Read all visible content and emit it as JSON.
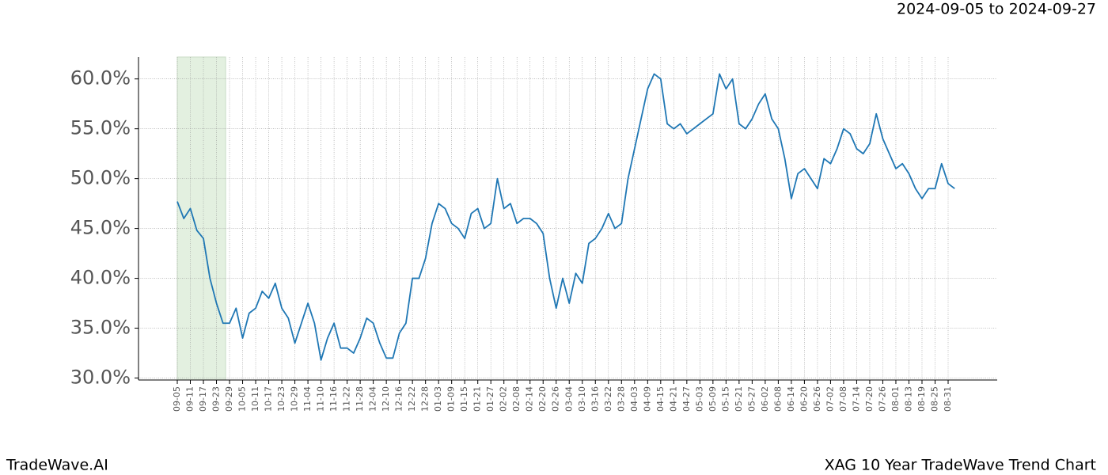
{
  "chart_data": {
    "type": "line",
    "title": "XAG 10 Year TradeWave Trend Chart",
    "subtitle": "2024-09-05 to 2024-09-27",
    "source": "TradeWave.AI",
    "categories": [
      "09-05",
      null,
      "09-11",
      null,
      "09-17",
      null,
      "09-23",
      null,
      "09-29",
      null,
      "10-05",
      null,
      "10-11",
      null,
      "10-17",
      null,
      "10-23",
      null,
      "10-29",
      null,
      "11-04",
      null,
      "11-10",
      null,
      "11-16",
      null,
      "11-22",
      null,
      "11-28",
      null,
      "12-04",
      null,
      "12-10",
      null,
      "12-16",
      null,
      "12-22",
      null,
      "12-28",
      null,
      "01-03",
      null,
      "01-09",
      null,
      "01-15",
      null,
      "01-21",
      null,
      "01-27",
      null,
      "02-02",
      null,
      "02-08",
      null,
      "02-14",
      null,
      "02-20",
      null,
      "02-26",
      null,
      "03-04",
      null,
      "03-10",
      null,
      "03-16",
      null,
      "03-22",
      null,
      "03-28",
      null,
      "04-03",
      null,
      "04-09",
      null,
      "04-15",
      null,
      "04-21",
      null,
      "04-27",
      null,
      "05-03",
      null,
      "05-09",
      null,
      "05-15",
      null,
      "05-21",
      null,
      "05-27",
      null,
      "06-02",
      null,
      "06-08",
      null,
      "06-14",
      null,
      "06-20",
      null,
      "06-26",
      null,
      "07-02",
      null,
      "07-08",
      null,
      "07-14",
      null,
      "07-20",
      null,
      "07-26",
      null,
      "08-01",
      null,
      "08-13",
      null,
      "08-19",
      null,
      "08-25",
      null,
      "08-31",
      null
    ],
    "series": [
      {
        "color": "#1f77b4",
        "values": [
          47.7,
          46.0,
          47.0,
          44.8,
          44.0,
          40.0,
          37.5,
          35.5,
          35.5,
          37.0,
          34.0,
          36.5,
          37.0,
          38.7,
          38.0,
          39.5,
          37.0,
          36.0,
          33.5,
          35.5,
          37.5,
          35.5,
          31.8,
          34.0,
          35.5,
          33.0,
          33.0,
          32.5,
          34.0,
          36.0,
          35.5,
          33.5,
          32.0,
          32.0,
          34.5,
          35.5,
          40.0,
          40.0,
          42.0,
          45.5,
          47.5,
          47.0,
          45.5,
          45.0,
          44.0,
          46.5,
          47.0,
          45.0,
          45.5,
          50.0,
          47.0,
          47.5,
          45.5,
          46.0,
          46.0,
          45.5,
          44.5,
          40.0,
          37.0,
          40.0,
          37.5,
          40.5,
          39.5,
          43.5,
          44.0,
          45.0,
          46.5,
          45.0,
          45.5,
          50.0,
          53.0,
          56.0,
          59.0,
          60.5,
          60.0,
          55.5,
          55.0,
          55.5,
          54.5,
          55.0,
          55.5,
          56.0,
          56.5,
          60.5,
          59.0,
          60.0,
          55.5,
          55.0,
          56.0,
          57.5,
          58.5,
          56.0,
          55.0,
          52.0,
          48.0,
          50.5,
          51.0,
          50.0,
          49.0,
          52.0,
          51.5,
          53.0,
          55.0,
          54.5,
          53.0,
          52.5,
          53.5,
          56.5,
          54.0,
          52.5,
          51.0,
          51.5,
          50.5,
          49.0,
          48.0,
          49.0,
          49.0,
          51.5,
          49.5,
          49.0
        ]
      }
    ],
    "ylim": [
      29.8,
      62.2
    ],
    "yticks": [
      {
        "value": 30,
        "label": "30.0%"
      },
      {
        "value": 35,
        "label": "35.0%"
      },
      {
        "value": 40,
        "label": "40.0%"
      },
      {
        "value": 45,
        "label": "45.0%"
      },
      {
        "value": 50,
        "label": "50.0%"
      },
      {
        "value": 55,
        "label": "55.0%"
      },
      {
        "value": 60,
        "label": "60.0%"
      }
    ],
    "grid": true
  }
}
